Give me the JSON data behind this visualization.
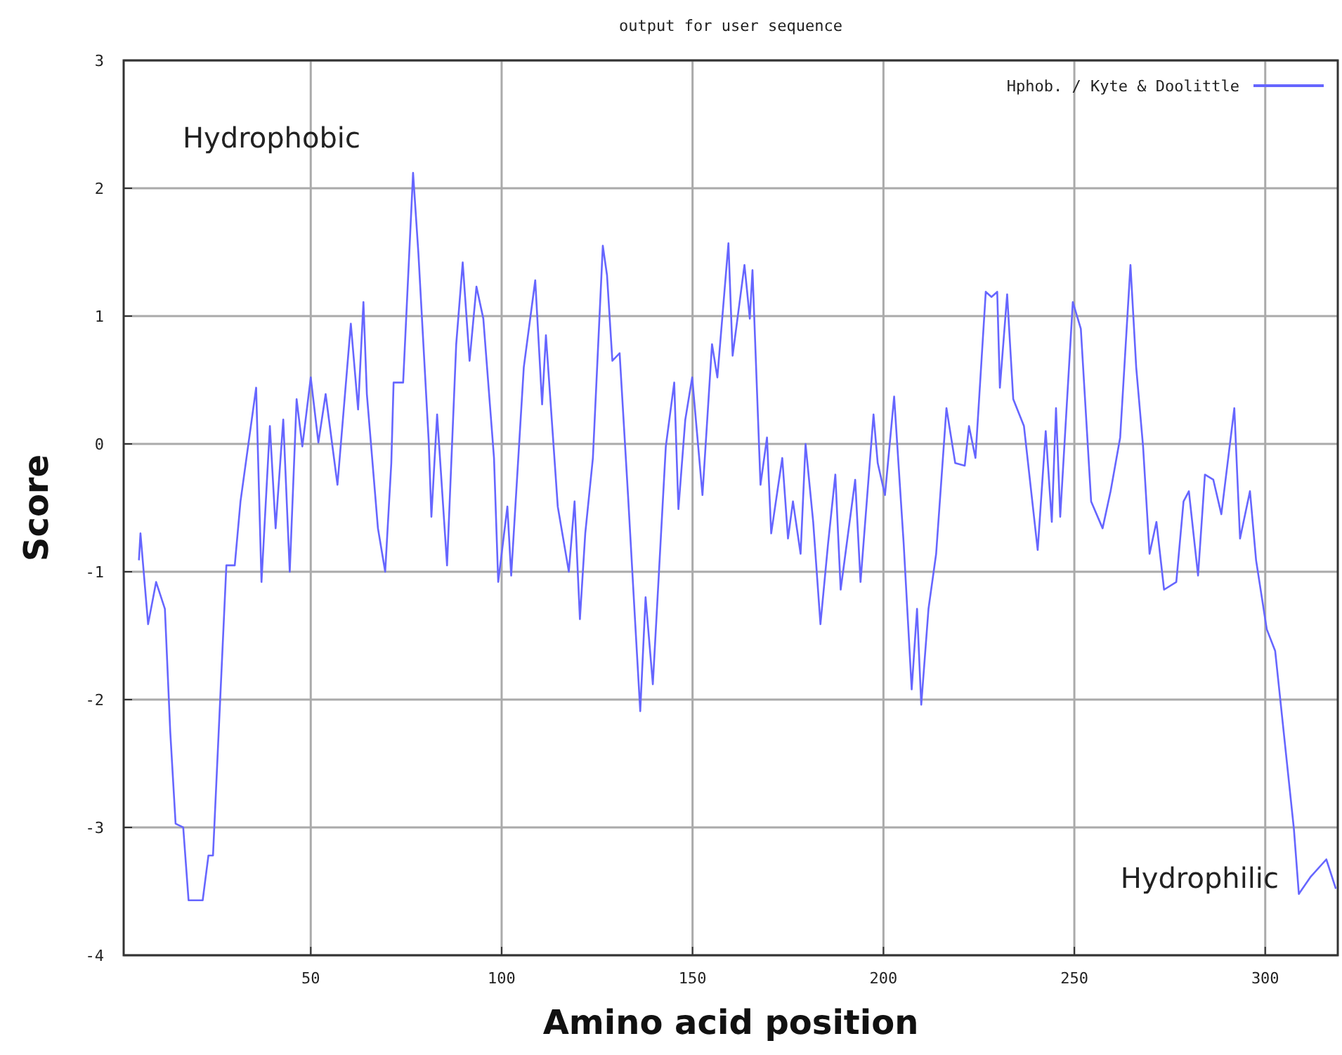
{
  "chart_data": {
    "type": "line",
    "title": "output for user sequence",
    "xlabel": "Amino acid position",
    "ylabel": "Score",
    "annotations": [
      "Hydrophobic",
      "Hydrophilic"
    ],
    "xlim": [
      1,
      319
    ],
    "ylim": [
      -4,
      3
    ],
    "xticks": [
      50,
      100,
      150,
      200,
      250,
      300
    ],
    "yticks": [
      -4,
      -3,
      -2,
      -1,
      0,
      1,
      2,
      3
    ],
    "grid": true,
    "legend": "top right",
    "marker": "none",
    "line_style": "solid",
    "series": [
      {
        "name": "Hphob. / Kyte & Doolittle",
        "color": "#6666ff",
        "x": [
          5,
          5.4,
          7.4,
          9.5,
          11.8,
          13.2,
          14.6,
          16.6,
          18,
          21.7,
          23.2,
          24.4,
          27.9,
          30.1,
          31.6,
          35.7,
          37.1,
          39.3,
          40.8,
          42.8,
          44.5,
          46.3,
          47.8,
          50,
          52,
          53.9,
          57,
          60.5,
          62.4,
          63.8,
          64.7,
          67.6,
          69.5,
          71.1,
          71.7,
          74.2,
          76.8,
          78.2,
          80.9,
          81.6,
          83.1,
          85.7,
          88.1,
          89.8,
          91.6,
          93.4,
          95.2,
          98,
          99.1,
          101.5,
          102.5,
          105.8,
          108.8,
          110.6,
          111.6,
          114.7,
          117.6,
          119.1,
          120.5,
          121.9,
          123.9,
          126.5,
          127.6,
          129,
          130.9,
          133.1,
          135,
          136.3,
          137.7,
          139.6,
          143,
          145.2,
          146.3,
          148.1,
          149.9,
          152.6,
          155.1,
          156.5,
          159.4,
          160.5,
          163.6,
          165,
          165.7,
          167.8,
          169.5,
          170.6,
          173.5,
          175,
          176.3,
          178.3,
          179.6,
          181.6,
          183.5,
          185.5,
          187.4,
          188.8,
          192.6,
          194,
          197.4,
          198.5,
          200.4,
          202.8,
          205.3,
          207.4,
          208.8,
          209.9,
          211.8,
          213.8,
          216.5,
          218.8,
          221.3,
          222.4,
          224.1,
          226.8,
          228.3,
          229.8,
          230.5,
          232.4,
          234,
          236.8,
          240.4,
          242.5,
          244.1,
          245.2,
          246.3,
          249.6,
          251.7,
          254.4,
          257.4,
          259.5,
          262,
          264.7,
          266.2,
          268,
          269.7,
          271.5,
          273.5,
          276.7,
          278.6,
          280,
          282.4,
          284.2,
          286.4,
          288.5,
          291.9,
          293.4,
          296,
          297.6,
          300.4,
          302.6,
          307.5,
          308.8,
          311.8,
          316,
          318.5
        ],
        "values": [
          -0.91,
          -0.7,
          -1.41,
          -1.08,
          -1.29,
          -2.25,
          -2.97,
          -3,
          -3.57,
          -3.57,
          -3.22,
          -3.22,
          -0.95,
          -0.95,
          -0.45,
          0.44,
          -1.08,
          0.14,
          -0.66,
          0.19,
          -1,
          0.35,
          -0.02,
          0.52,
          0.01,
          0.39,
          -0.32,
          0.94,
          0.27,
          1.11,
          0.39,
          -0.66,
          -1,
          -0.15,
          0.48,
          0.48,
          2.12,
          1.49,
          0.02,
          -0.57,
          0.23,
          -0.95,
          0.78,
          1.42,
          0.65,
          1.23,
          0.98,
          -0.11,
          -1.08,
          -0.49,
          -1.03,
          0.6,
          1.28,
          0.31,
          0.85,
          -0.49,
          -1,
          -0.45,
          -1.37,
          -0.7,
          -0.11,
          1.55,
          1.32,
          0.65,
          0.71,
          -0.4,
          -1.41,
          -2.09,
          -1.2,
          -1.88,
          -0.02,
          0.48,
          -0.51,
          0.19,
          0.52,
          -0.4,
          0.78,
          0.52,
          1.57,
          0.69,
          1.4,
          0.98,
          1.36,
          -0.32,
          0.05,
          -0.7,
          -0.11,
          -0.74,
          -0.45,
          -0.86,
          0,
          -0.61,
          -1.41,
          -0.78,
          -0.24,
          -1.14,
          -0.28,
          -1.08,
          0.23,
          -0.15,
          -0.4,
          0.37,
          -0.78,
          -1.92,
          -1.29,
          -2.04,
          -1.29,
          -0.86,
          0.28,
          -0.15,
          -0.17,
          0.14,
          -0.11,
          1.19,
          1.15,
          1.19,
          0.44,
          1.17,
          0.35,
          0.14,
          -0.83,
          0.1,
          -0.61,
          0.28,
          -0.57,
          1.11,
          0.9,
          -0.45,
          -0.66,
          -0.37,
          0.05,
          1.4,
          0.6,
          -0.02,
          -0.86,
          -0.61,
          -1.14,
          -1.08,
          -0.45,
          -0.37,
          -1.03,
          -0.24,
          -0.28,
          -0.55,
          0.28,
          -0.74,
          -0.37,
          -0.91,
          -1.45,
          -1.62,
          -3.01,
          -3.52,
          -3.39,
          -3.25,
          -3.48
        ]
      }
    ]
  }
}
